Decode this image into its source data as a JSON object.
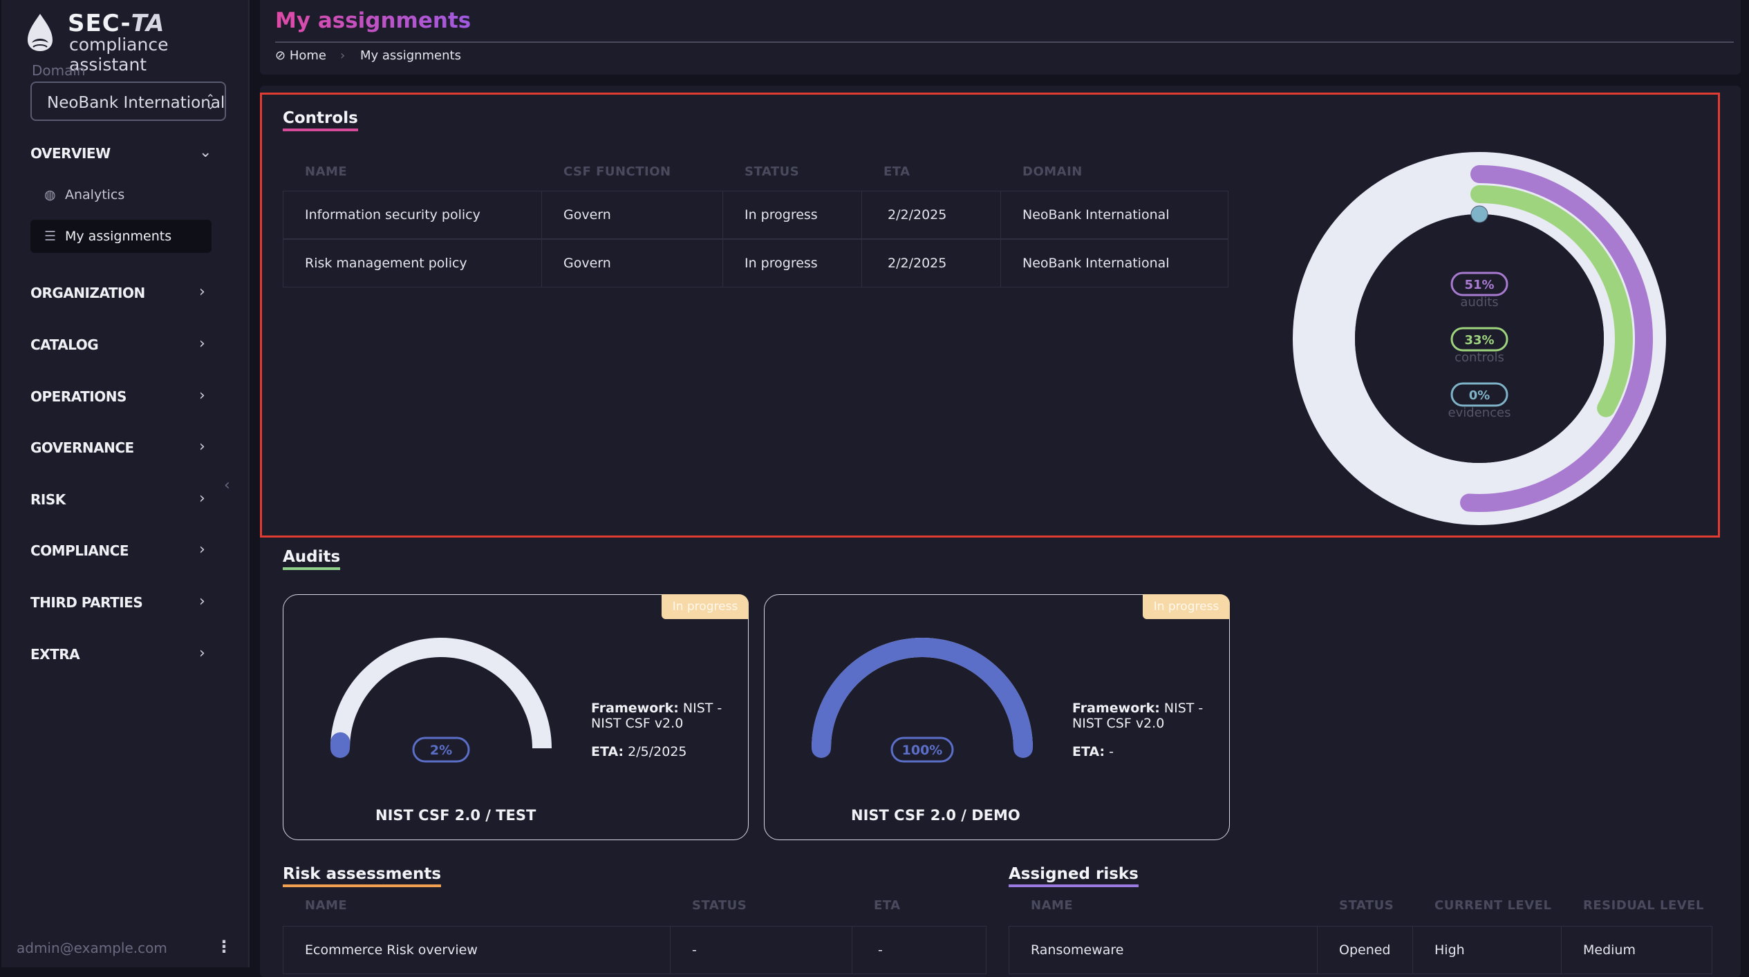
{
  "brand": {
    "name_bold": "SEC-",
    "name_italic": "TA",
    "subtitle": "compliance assistant"
  },
  "domain": {
    "label": "Domain",
    "selected": "NeoBank International"
  },
  "nav": {
    "overview": "OVERVIEW",
    "analytics": "Analytics",
    "my_assignments": "My assignments",
    "organization": "ORGANIZATION",
    "catalog": "CATALOG",
    "operations": "OPERATIONS",
    "governance": "GOVERNANCE",
    "risk": "RISK",
    "compliance": "COMPLIANCE",
    "third_parties": "THIRD PARTIES",
    "extra": "EXTRA"
  },
  "user": {
    "email": "admin@example.com"
  },
  "header": {
    "title": "My assignments",
    "breadcrumb": [
      "Home",
      "My assignments"
    ]
  },
  "controls": {
    "title": "Controls",
    "columns": [
      "NAME",
      "CSF FUNCTION",
      "STATUS",
      "ETA",
      "DOMAIN"
    ],
    "rows": [
      [
        "Information security policy",
        "Govern",
        "In progress",
        "2/2/2025",
        "NeoBank International"
      ],
      [
        "Risk management policy",
        "Govern",
        "In progress",
        "2/2/2025",
        "NeoBank International"
      ]
    ]
  },
  "progress_ring": [
    {
      "label": "audits",
      "percent": "51%",
      "value": 51,
      "color": "#a87ad0"
    },
    {
      "label": "controls",
      "percent": "33%",
      "value": 33,
      "color": "#9fd47e"
    },
    {
      "label": "evidences",
      "percent": "0%",
      "value": 0,
      "color": "#7fb3c8"
    }
  ],
  "audits": {
    "title": "Audits",
    "items": [
      {
        "name": "NIST CSF 2.0 / TEST",
        "status": "In progress",
        "percent": "2%",
        "value": 2,
        "framework_label": "Framework:",
        "framework": "NIST - NIST CSF v2.0",
        "eta_label": "ETA:",
        "eta": "2/5/2025"
      },
      {
        "name": "NIST CSF 2.0 / DEMO",
        "status": "In progress",
        "percent": "100%",
        "value": 100,
        "framework_label": "Framework:",
        "framework": "NIST - NIST CSF v2.0",
        "eta_label": "ETA:",
        "eta": "-"
      }
    ]
  },
  "risk_assessments": {
    "title": "Risk assessments",
    "columns": [
      "NAME",
      "STATUS",
      "ETA"
    ],
    "rows": [
      [
        "Ecommerce Risk overview",
        "-",
        "-"
      ]
    ]
  },
  "assigned_risks": {
    "title": "Assigned risks",
    "columns": [
      "NAME",
      "STATUS",
      "CURRENT LEVEL",
      "RESIDUAL LEVEL"
    ],
    "rows": [
      [
        "Ransomeware",
        "Opened",
        "High",
        "Medium"
      ]
    ]
  }
}
